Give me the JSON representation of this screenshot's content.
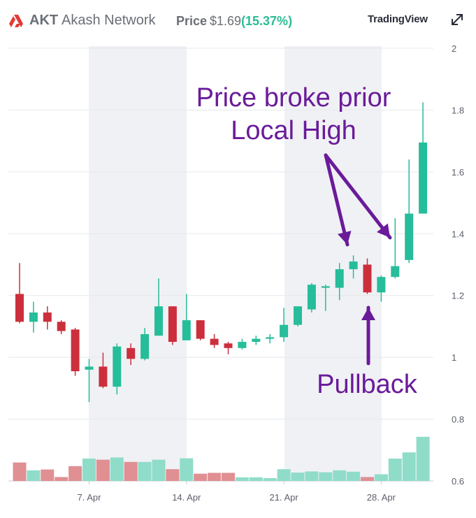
{
  "header": {
    "ticker": "AKT",
    "name": "Akash Network",
    "price_label": "Price",
    "price": "$1.69",
    "change_open": "(",
    "change": "15.37%",
    "change_close": ")",
    "brand": "TradingView"
  },
  "icons": {
    "logo": "akash-logo-icon",
    "expand": "expand-icon"
  },
  "colors": {
    "up": "#26bd9a",
    "down": "#cc2f3c",
    "vol_up": "#8fdcc9",
    "vol_down": "#e08f93",
    "shade": "#f0f1f4",
    "annotation": "#6a1b9a",
    "axis_text": "#5d606b"
  },
  "annotations": {
    "breakout": [
      "Price broke prior",
      "Local High"
    ],
    "pullback": "Pullback"
  },
  "chart_data": {
    "type": "candlestick",
    "y_ticks": [
      "2",
      "1.8",
      "1.6",
      "1.4",
      "1.2",
      "1",
      "0.8",
      "0.6"
    ],
    "y_range": [
      0.6,
      2.0
    ],
    "x_ticks": [
      "7. Apr",
      "14. Apr",
      "21. Apr",
      "28. Apr"
    ],
    "candles": [
      {
        "o": 1.205,
        "h": 1.305,
        "l": 1.11,
        "c": 1.115
      },
      {
        "o": 1.115,
        "h": 1.18,
        "l": 1.08,
        "c": 1.145
      },
      {
        "o": 1.145,
        "h": 1.165,
        "l": 1.09,
        "c": 1.115
      },
      {
        "o": 1.115,
        "h": 1.12,
        "l": 1.075,
        "c": 1.085
      },
      {
        "o": 1.09,
        "h": 1.095,
        "l": 0.94,
        "c": 0.955
      },
      {
        "o": 0.96,
        "h": 0.995,
        "l": 0.855,
        "c": 0.97
      },
      {
        "o": 0.97,
        "h": 1.015,
        "l": 0.9,
        "c": 0.905
      },
      {
        "o": 0.905,
        "h": 1.045,
        "l": 0.88,
        "c": 1.035
      },
      {
        "o": 1.03,
        "h": 1.045,
        "l": 0.975,
        "c": 0.995
      },
      {
        "o": 0.995,
        "h": 1.095,
        "l": 0.99,
        "c": 1.075
      },
      {
        "o": 1.07,
        "h": 1.255,
        "l": 1.07,
        "c": 1.165
      },
      {
        "o": 1.165,
        "h": 1.165,
        "l": 1.04,
        "c": 1.05
      },
      {
        "o": 1.055,
        "h": 1.205,
        "l": 1.055,
        "c": 1.12
      },
      {
        "o": 1.12,
        "h": 1.12,
        "l": 1.055,
        "c": 1.06
      },
      {
        "o": 1.06,
        "h": 1.075,
        "l": 1.03,
        "c": 1.04
      },
      {
        "o": 1.045,
        "h": 1.05,
        "l": 1.01,
        "c": 1.03
      },
      {
        "o": 1.03,
        "h": 1.06,
        "l": 1.025,
        "c": 1.05
      },
      {
        "o": 1.05,
        "h": 1.07,
        "l": 1.04,
        "c": 1.06
      },
      {
        "o": 1.06,
        "h": 1.075,
        "l": 1.045,
        "c": 1.065
      },
      {
        "o": 1.065,
        "h": 1.16,
        "l": 1.05,
        "c": 1.105
      },
      {
        "o": 1.105,
        "h": 1.165,
        "l": 1.1,
        "c": 1.165
      },
      {
        "o": 1.155,
        "h": 1.24,
        "l": 1.145,
        "c": 1.235
      },
      {
        "o": 1.225,
        "h": 1.235,
        "l": 1.15,
        "c": 1.23
      },
      {
        "o": 1.225,
        "h": 1.305,
        "l": 1.185,
        "c": 1.285
      },
      {
        "o": 1.285,
        "h": 1.33,
        "l": 1.255,
        "c": 1.31
      },
      {
        "o": 1.3,
        "h": 1.32,
        "l": 1.205,
        "c": 1.21
      },
      {
        "o": 1.21,
        "h": 1.265,
        "l": 1.18,
        "c": 1.26
      },
      {
        "o": 1.26,
        "h": 1.45,
        "l": 1.255,
        "c": 1.295
      },
      {
        "o": 1.315,
        "h": 1.64,
        "l": 1.305,
        "c": 1.465
      },
      {
        "o": 1.465,
        "h": 1.825,
        "l": 1.465,
        "c": 1.695
      }
    ],
    "volume": [
      0.66,
      0.38,
      0.41,
      0.14,
      0.53,
      0.8,
      0.76,
      0.84,
      0.68,
      0.68,
      0.76,
      0.42,
      0.81,
      0.26,
      0.29,
      0.29,
      0.13,
      0.13,
      0.1,
      0.42,
      0.3,
      0.34,
      0.31,
      0.38,
      0.33,
      0.14,
      0.24,
      0.8,
      1.02,
      1.58
    ]
  }
}
